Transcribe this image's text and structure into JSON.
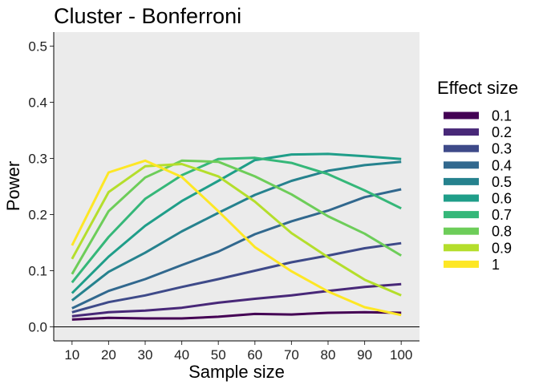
{
  "chart_data": {
    "type": "line",
    "title": "Cluster - Bonferroni",
    "xlabel": "Sample size",
    "ylabel": "Power",
    "x": [
      10,
      20,
      30,
      40,
      50,
      60,
      70,
      80,
      90,
      100
    ],
    "xlim": [
      5,
      105
    ],
    "ylim": [
      -0.025,
      0.525
    ],
    "yticks": [
      "0.0",
      "0.1",
      "0.2",
      "0.3",
      "0.4",
      "0.5"
    ],
    "xticks": [
      "10",
      "20",
      "30",
      "40",
      "50",
      "60",
      "70",
      "80",
      "90",
      "100"
    ],
    "legend_title": "Effect size",
    "legend_position": "right",
    "panel_background": "#EBEBEB",
    "series": [
      {
        "name": "0.1",
        "color": "#440154",
        "values": [
          0.013,
          0.016,
          0.015,
          0.015,
          0.018,
          0.023,
          0.022,
          0.025,
          0.026,
          0.025
        ]
      },
      {
        "name": "0.2",
        "color": "#482878",
        "values": [
          0.019,
          0.026,
          0.029,
          0.034,
          0.043,
          0.05,
          0.056,
          0.064,
          0.071,
          0.076
        ]
      },
      {
        "name": "0.3",
        "color": "#3E4A89",
        "values": [
          0.026,
          0.044,
          0.056,
          0.071,
          0.085,
          0.1,
          0.115,
          0.127,
          0.14,
          0.149
        ]
      },
      {
        "name": "0.4",
        "color": "#31688E",
        "values": [
          0.033,
          0.064,
          0.085,
          0.11,
          0.134,
          0.165,
          0.188,
          0.207,
          0.231,
          0.245
        ]
      },
      {
        "name": "0.5",
        "color": "#26828E",
        "values": [
          0.047,
          0.098,
          0.132,
          0.17,
          0.203,
          0.235,
          0.26,
          0.278,
          0.288,
          0.294
        ]
      },
      {
        "name": "0.6",
        "color": "#1F9E89",
        "values": [
          0.06,
          0.125,
          0.18,
          0.224,
          0.26,
          0.297,
          0.307,
          0.308,
          0.304,
          0.299
        ]
      },
      {
        "name": "0.7",
        "color": "#35B779",
        "values": [
          0.079,
          0.16,
          0.228,
          0.27,
          0.299,
          0.301,
          0.292,
          0.272,
          0.243,
          0.211
        ]
      },
      {
        "name": "0.8",
        "color": "#6DCD59",
        "values": [
          0.094,
          0.206,
          0.266,
          0.296,
          0.294,
          0.268,
          0.236,
          0.197,
          0.166,
          0.127
        ]
      },
      {
        "name": "0.9",
        "color": "#B4DE2C",
        "values": [
          0.121,
          0.24,
          0.286,
          0.29,
          0.268,
          0.223,
          0.167,
          0.124,
          0.084,
          0.056
        ]
      },
      {
        "name": "1",
        "color": "#FDE725",
        "values": [
          0.145,
          0.275,
          0.296,
          0.267,
          0.206,
          0.142,
          0.099,
          0.063,
          0.035,
          0.021
        ]
      }
    ]
  }
}
